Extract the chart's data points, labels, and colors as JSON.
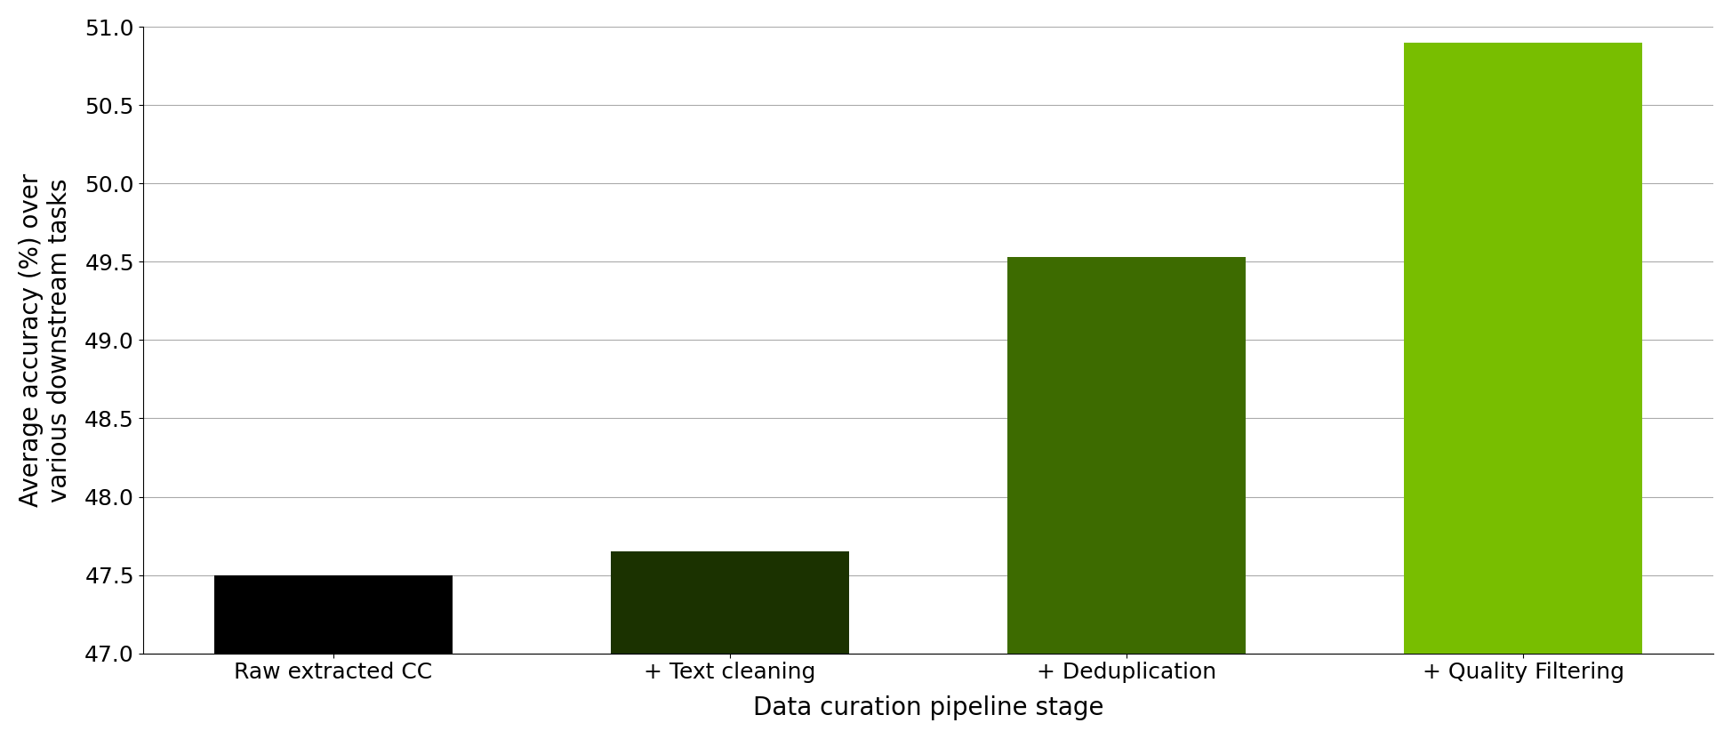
{
  "categories": [
    "Raw extracted CC",
    "+ Text cleaning",
    "+ Deduplication",
    "+ Quality Filtering"
  ],
  "values": [
    47.5,
    47.65,
    49.53,
    50.9
  ],
  "bar_colors": [
    "#000000",
    "#1b3200",
    "#3d6b00",
    "#78be00"
  ],
  "xlabel": "Data curation pipeline stage",
  "ylabel": "Average accuracy (%) over\nvarious downstream tasks",
  "ylim": [
    47.0,
    51.0
  ],
  "yticks": [
    47.0,
    47.5,
    48.0,
    48.5,
    49.0,
    49.5,
    50.0,
    50.5,
    51.0
  ],
  "grid_color": "#aaaaaa",
  "label_fontsize": 20,
  "tick_fontsize": 18,
  "bar_width": 0.6,
  "background_color": "#ffffff",
  "bar_bottom": 47.0
}
